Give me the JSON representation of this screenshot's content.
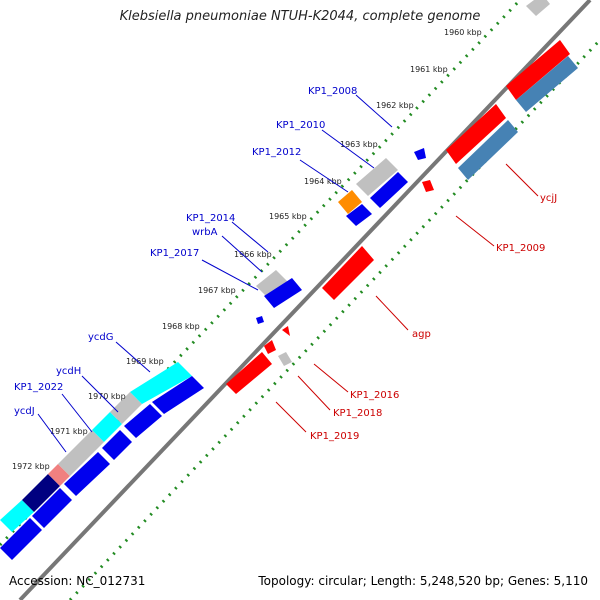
{
  "title": "Klebsiella pneumoniae NTUH-K2044, complete genome",
  "footer": {
    "accession": "Accession: NC_012731",
    "topology": "Topology: circular; Length: 5,248,520 bp; Genes: 5,110"
  },
  "colors": {
    "reverse_gene": "#ff0000",
    "reverse_gene_alt": "#4682b4",
    "forward_gene": "#0000ee",
    "forward_gene_dark": "#000080",
    "forward_gene_cyan": "#00ffff",
    "unknown_gene": "#c0c0c0",
    "orange_gene": "#ff8c00",
    "pink_gene": "#f08080",
    "tick_mark": "#228b22",
    "backbone": "#808080",
    "forward_label": "#0000cc",
    "reverse_label": "#cc0000"
  },
  "tick_labels": [
    "1960 kbp",
    "1961 kbp",
    "1962 kbp",
    "1963 kbp",
    "1964 kbp",
    "1965 kbp",
    "1966 kbp",
    "1967 kbp",
    "1968 kbp",
    "1969 kbp",
    "1970 kbp",
    "1971 kbp",
    "1972 kbp"
  ],
  "forward_genes": [
    "KP1_2008",
    "KP1_2010",
    "KP1_2012",
    "KP1_2014",
    "wrbA",
    "KP1_2017",
    "ycdG",
    "ycdH",
    "KP1_2022",
    "ycdJ"
  ],
  "reverse_genes": [
    "ycjJ",
    "KP1_2009",
    "agp",
    "KP1_2016",
    "KP1_2018",
    "KP1_2019"
  ]
}
